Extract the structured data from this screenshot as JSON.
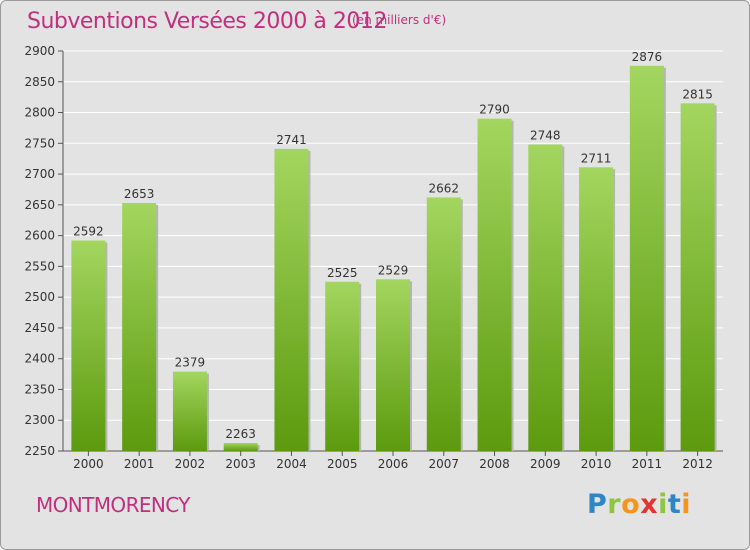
{
  "header": {
    "title": "Subventions Versées 2000 à 2012",
    "unit_note": "(en milliers d'€)"
  },
  "footer": {
    "commune": "MONTMORENCY",
    "logo_text": "Proxiti"
  },
  "colors": {
    "title": "#c0307f",
    "bar_light": "#9fd25a",
    "bar_dark": "#5f9e10",
    "background": "#e3e3e3"
  },
  "chart_data": {
    "type": "bar",
    "categories": [
      "2000",
      "2001",
      "2002",
      "2003",
      "2004",
      "2005",
      "2006",
      "2007",
      "2008",
      "2009",
      "2010",
      "2011",
      "2012"
    ],
    "values": [
      2592,
      2653,
      2379,
      2263,
      2741,
      2525,
      2529,
      2662,
      2790,
      2748,
      2711,
      2876,
      2815
    ],
    "data_labels": [
      "2592",
      "2653",
      "2379",
      "2263",
      "2741",
      "2525",
      "2529",
      "2662",
      "2790",
      "2748",
      "2711",
      "2876",
      "2815"
    ],
    "ylim": [
      2250,
      2900
    ],
    "yticks": [
      2250,
      2300,
      2350,
      2400,
      2450,
      2500,
      2550,
      2600,
      2650,
      2700,
      2750,
      2800,
      2850,
      2900
    ],
    "grid": true,
    "legend": "none"
  }
}
